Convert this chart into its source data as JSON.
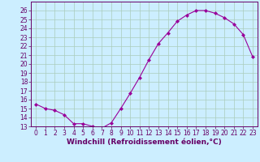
{
  "x": [
    0,
    1,
    2,
    3,
    4,
    5,
    6,
    7,
    8,
    9,
    10,
    11,
    12,
    13,
    14,
    15,
    16,
    17,
    18,
    19,
    20,
    21,
    22,
    23
  ],
  "y": [
    15.5,
    15.0,
    14.8,
    14.3,
    13.3,
    13.3,
    13.0,
    12.8,
    13.4,
    15.0,
    16.7,
    18.5,
    20.5,
    22.3,
    23.5,
    24.8,
    25.5,
    26.0,
    26.0,
    25.7,
    25.2,
    24.5,
    23.3,
    20.8
  ],
  "line_color": "#990099",
  "marker": "D",
  "marker_size": 2,
  "bg_color": "#cceeff",
  "grid_color": "#aaccbb",
  "xlabel": "Windchill (Refroidissement éolien,°C)",
  "xlabel_color": "#660066",
  "tick_color": "#660066",
  "spine_color": "#660066",
  "ylim": [
    13,
    27
  ],
  "xlim": [
    -0.5,
    23.5
  ],
  "yticks": [
    13,
    14,
    15,
    16,
    17,
    18,
    19,
    20,
    21,
    22,
    23,
    24,
    25,
    26
  ],
  "xticks": [
    0,
    1,
    2,
    3,
    4,
    5,
    6,
    7,
    8,
    9,
    10,
    11,
    12,
    13,
    14,
    15,
    16,
    17,
    18,
    19,
    20,
    21,
    22,
    23
  ],
  "tick_fontsize": 5.5,
  "xlabel_fontsize": 6.5
}
